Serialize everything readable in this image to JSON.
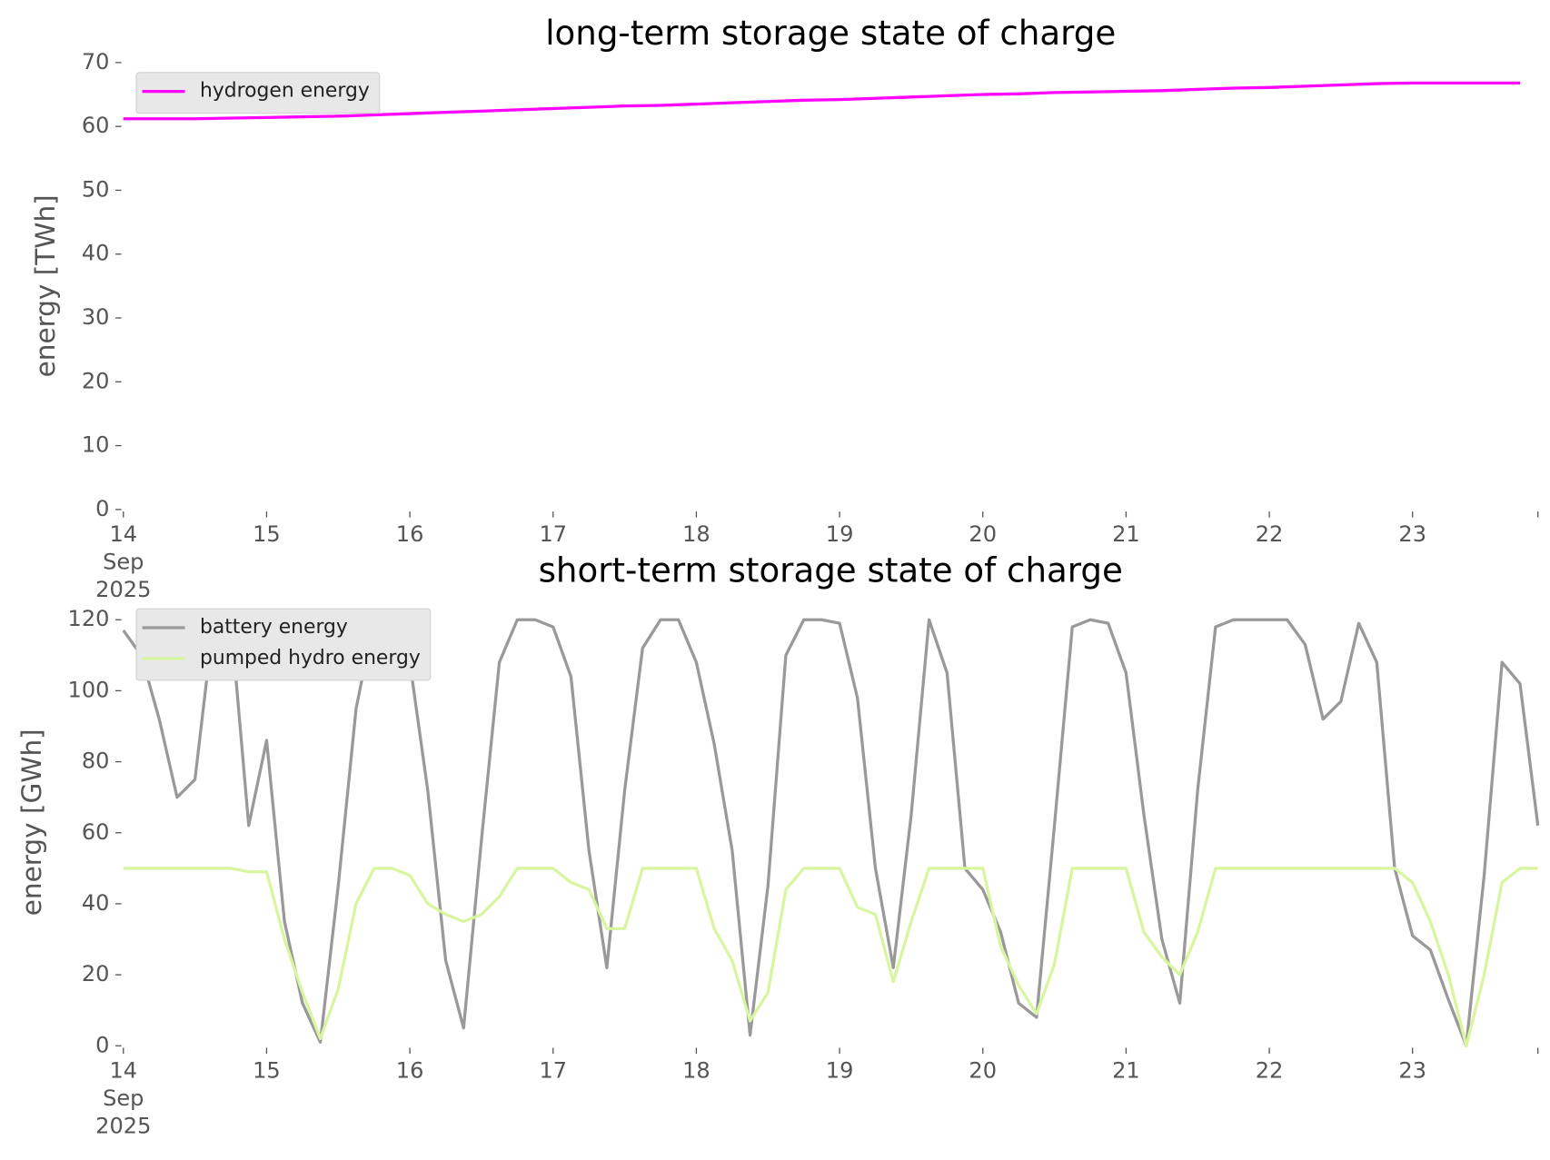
{
  "chart_data": [
    {
      "type": "line",
      "title": "long-term storage state of charge",
      "ylabel": "energy [TWh]",
      "x": [
        "2025-09-14T00:00",
        "2025-09-14T06:00",
        "2025-09-14T12:00",
        "2025-09-14T18:00",
        "2025-09-15T00:00",
        "2025-09-15T06:00",
        "2025-09-15T12:00",
        "2025-09-15T18:00",
        "2025-09-16T00:00",
        "2025-09-16T06:00",
        "2025-09-16T12:00",
        "2025-09-16T18:00",
        "2025-09-17T00:00",
        "2025-09-17T06:00",
        "2025-09-17T12:00",
        "2025-09-17T18:00",
        "2025-09-18T00:00",
        "2025-09-18T06:00",
        "2025-09-18T12:00",
        "2025-09-18T18:00",
        "2025-09-19T00:00",
        "2025-09-19T06:00",
        "2025-09-19T12:00",
        "2025-09-19T18:00",
        "2025-09-20T00:00",
        "2025-09-20T06:00",
        "2025-09-20T12:00",
        "2025-09-20T18:00",
        "2025-09-21T00:00",
        "2025-09-21T06:00",
        "2025-09-21T12:00",
        "2025-09-21T18:00",
        "2025-09-22T00:00",
        "2025-09-22T06:00",
        "2025-09-22T12:00",
        "2025-09-22T18:00",
        "2025-09-23T00:00",
        "2025-09-23T06:00",
        "2025-09-23T12:00",
        "2025-09-23T18:00"
      ],
      "xlim": [
        "2025-09-14T00:00",
        "2025-09-23T21:00"
      ],
      "xticks": [
        {
          "value": "2025-09-14T00:00",
          "label": "14\nSep\n2025"
        },
        {
          "value": "2025-09-15T00:00",
          "label": "15"
        },
        {
          "value": "2025-09-16T00:00",
          "label": "16"
        },
        {
          "value": "2025-09-17T00:00",
          "label": "17"
        },
        {
          "value": "2025-09-18T00:00",
          "label": "18"
        },
        {
          "value": "2025-09-19T00:00",
          "label": "19"
        },
        {
          "value": "2025-09-20T00:00",
          "label": "20"
        },
        {
          "value": "2025-09-21T00:00",
          "label": "21"
        },
        {
          "value": "2025-09-22T00:00",
          "label": "22"
        },
        {
          "value": "2025-09-23T00:00",
          "label": "23"
        }
      ],
      "ylim": [
        0,
        70
      ],
      "yticks": [
        0,
        10,
        20,
        30,
        40,
        50,
        60,
        70
      ],
      "legend": "upper left",
      "series": [
        {
          "name": "hydrogen energy",
          "color": "#ff00ff",
          "values": [
            61.2,
            61.2,
            61.2,
            61.3,
            61.4,
            61.5,
            61.6,
            61.8,
            62.0,
            62.2,
            62.4,
            62.6,
            62.8,
            63.0,
            63.2,
            63.3,
            63.5,
            63.7,
            63.9,
            64.1,
            64.2,
            64.4,
            64.6,
            64.8,
            65.0,
            65.1,
            65.3,
            65.4,
            65.5,
            65.6,
            65.8,
            66.0,
            66.1,
            66.3,
            66.5,
            66.7,
            66.8,
            66.8,
            66.8,
            66.8
          ]
        }
      ]
    },
    {
      "type": "line",
      "title": "short-term storage state of charge",
      "ylabel": "energy [GWh]",
      "x": [
        "2025-09-14T00:00",
        "2025-09-14T03:00",
        "2025-09-14T06:00",
        "2025-09-14T09:00",
        "2025-09-14T12:00",
        "2025-09-14T15:00",
        "2025-09-14T18:00",
        "2025-09-14T21:00",
        "2025-09-15T00:00",
        "2025-09-15T03:00",
        "2025-09-15T06:00",
        "2025-09-15T09:00",
        "2025-09-15T12:00",
        "2025-09-15T15:00",
        "2025-09-15T18:00",
        "2025-09-15T21:00",
        "2025-09-16T00:00",
        "2025-09-16T03:00",
        "2025-09-16T06:00",
        "2025-09-16T09:00",
        "2025-09-16T12:00",
        "2025-09-16T15:00",
        "2025-09-16T18:00",
        "2025-09-16T21:00",
        "2025-09-17T00:00",
        "2025-09-17T03:00",
        "2025-09-17T06:00",
        "2025-09-17T09:00",
        "2025-09-17T12:00",
        "2025-09-17T15:00",
        "2025-09-17T18:00",
        "2025-09-17T21:00",
        "2025-09-18T00:00",
        "2025-09-18T03:00",
        "2025-09-18T06:00",
        "2025-09-18T09:00",
        "2025-09-18T12:00",
        "2025-09-18T15:00",
        "2025-09-18T18:00",
        "2025-09-18T21:00",
        "2025-09-19T00:00",
        "2025-09-19T03:00",
        "2025-09-19T06:00",
        "2025-09-19T09:00",
        "2025-09-19T12:00",
        "2025-09-19T15:00",
        "2025-09-19T18:00",
        "2025-09-19T21:00",
        "2025-09-20T00:00",
        "2025-09-20T03:00",
        "2025-09-20T06:00",
        "2025-09-20T09:00",
        "2025-09-20T12:00",
        "2025-09-20T15:00",
        "2025-09-20T18:00",
        "2025-09-20T21:00",
        "2025-09-21T00:00",
        "2025-09-21T03:00",
        "2025-09-21T06:00",
        "2025-09-21T09:00",
        "2025-09-21T12:00",
        "2025-09-21T15:00",
        "2025-09-21T18:00",
        "2025-09-21T21:00",
        "2025-09-22T00:00",
        "2025-09-22T03:00",
        "2025-09-22T06:00",
        "2025-09-22T09:00",
        "2025-09-22T12:00",
        "2025-09-22T15:00",
        "2025-09-22T18:00",
        "2025-09-22T21:00",
        "2025-09-23T00:00",
        "2025-09-23T03:00",
        "2025-09-23T06:00",
        "2025-09-23T09:00",
        "2025-09-23T12:00",
        "2025-09-23T15:00",
        "2025-09-23T18:00",
        "2025-09-23T21:00"
      ],
      "xlim": [
        "2025-09-14T00:00",
        "2025-09-23T21:00"
      ],
      "xticks": [
        {
          "value": "2025-09-14T00:00",
          "label": "14\nSep\n2025"
        },
        {
          "value": "2025-09-15T00:00",
          "label": "15"
        },
        {
          "value": "2025-09-16T00:00",
          "label": "16"
        },
        {
          "value": "2025-09-17T00:00",
          "label": "17"
        },
        {
          "value": "2025-09-18T00:00",
          "label": "18"
        },
        {
          "value": "2025-09-19T00:00",
          "label": "19"
        },
        {
          "value": "2025-09-20T00:00",
          "label": "20"
        },
        {
          "value": "2025-09-21T00:00",
          "label": "21"
        },
        {
          "value": "2025-09-22T00:00",
          "label": "22"
        },
        {
          "value": "2025-09-23T00:00",
          "label": "23"
        }
      ],
      "ylim": [
        0,
        120
      ],
      "yticks": [
        0,
        20,
        40,
        60,
        80,
        100,
        120
      ],
      "legend": "upper left",
      "series": [
        {
          "name": "battery energy",
          "color": "#999999",
          "values": [
            117,
            110,
            92,
            70,
            75,
            118,
            120,
            62,
            86,
            35,
            12,
            1,
            45,
            95,
            120,
            120,
            108,
            72,
            24,
            5,
            58,
            108,
            120,
            120,
            118,
            104,
            55,
            22,
            72,
            112,
            120,
            120,
            108,
            85,
            55,
            3,
            45,
            110,
            120,
            120,
            119,
            98,
            50,
            22,
            65,
            120,
            105,
            50,
            44,
            32,
            12,
            8,
            62,
            118,
            120,
            119,
            105,
            65,
            30,
            12,
            72,
            118,
            120,
            120,
            120,
            120,
            113,
            92,
            97,
            119,
            108,
            50,
            31,
            27,
            13,
            0,
            48,
            108,
            102,
            62
          ]
        },
        {
          "name": "pumped hydro energy",
          "color": "#d8f5a0",
          "values": [
            50,
            50,
            50,
            50,
            50,
            50,
            50,
            49,
            49,
            30,
            15,
            2,
            16,
            40,
            50,
            50,
            48,
            40,
            37,
            35,
            37,
            42,
            50,
            50,
            50,
            46,
            44,
            33,
            33,
            50,
            50,
            50,
            50,
            33,
            24,
            7,
            15,
            44,
            50,
            50,
            50,
            39,
            37,
            18,
            35,
            50,
            50,
            50,
            50,
            28,
            17,
            9,
            23,
            50,
            50,
            50,
            50,
            32,
            25,
            20,
            32,
            50,
            50,
            50,
            50,
            50,
            50,
            50,
            50,
            50,
            50,
            50,
            46,
            35,
            20,
            0,
            20,
            46,
            50,
            50
          ]
        }
      ]
    }
  ]
}
